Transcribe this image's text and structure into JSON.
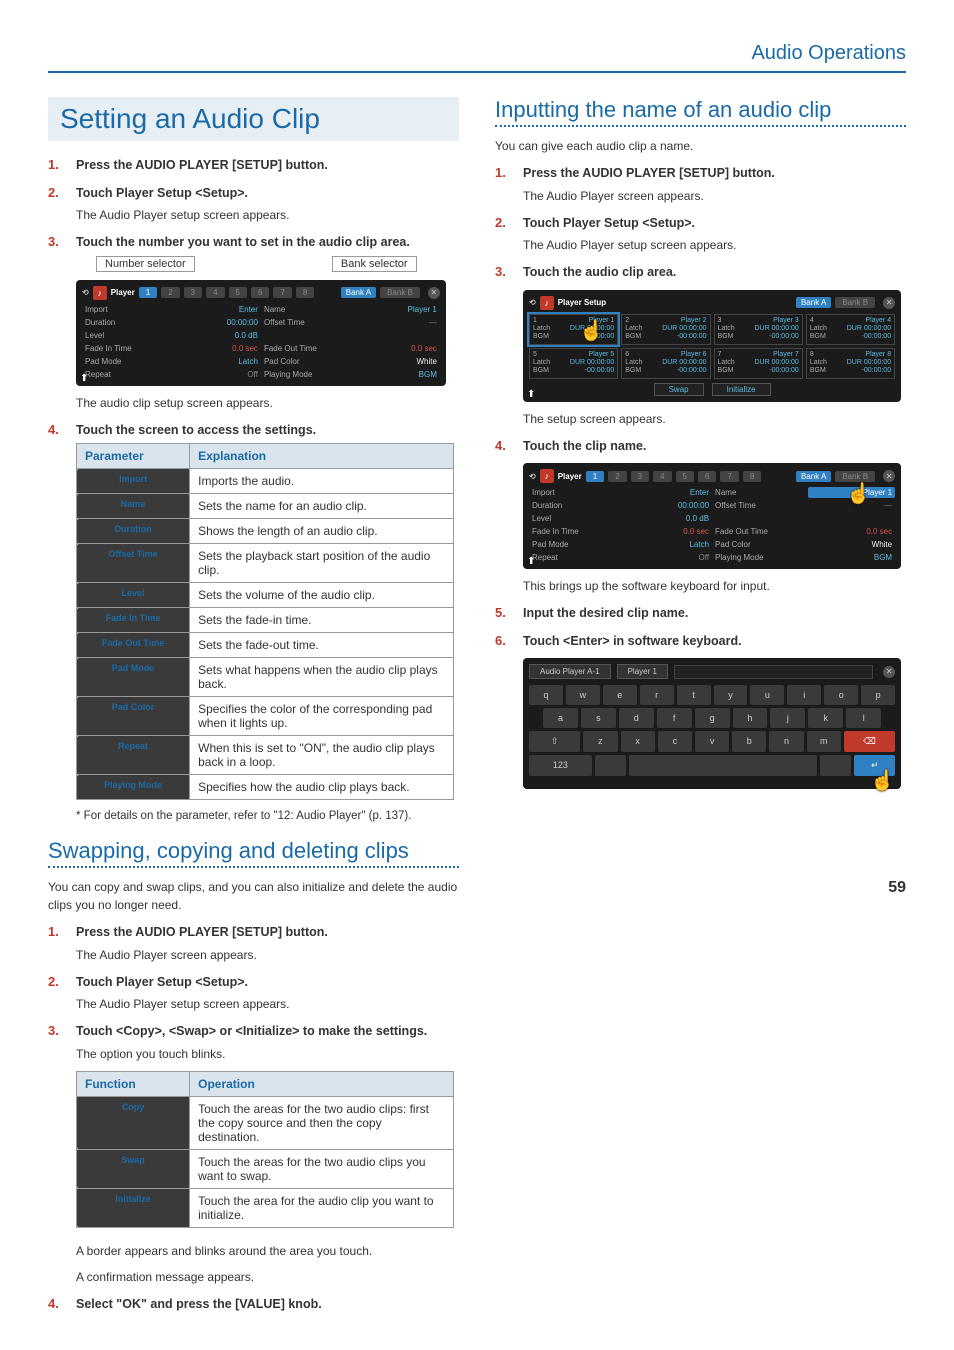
{
  "header": {
    "title": "Audio Operations"
  },
  "left": {
    "title": "Setting an Audio Clip",
    "steps": [
      {
        "n": "1.",
        "t": "Press the AUDIO PLAYER [SETUP] button."
      },
      {
        "n": "2.",
        "t": "Touch Player Setup <Setup>.",
        "s": "The Audio Player setup screen appears."
      },
      {
        "n": "3.",
        "t": "Touch the number you want to set in the audio clip area."
      }
    ],
    "callouts": {
      "num": "Number selector",
      "bank": "Bank selector"
    },
    "shot1": {
      "title": "Player",
      "tabs": [
        "1",
        "2",
        "3",
        "4",
        "5",
        "6",
        "7",
        "8"
      ],
      "bankA": "Bank A",
      "bankB": "Bank B",
      "rows": [
        [
          "Import",
          "Enter",
          "Name",
          "Player 1"
        ],
        [
          "Duration",
          "00:00:00",
          "Offset Time",
          "—"
        ],
        [
          "Level",
          "0.0 dB",
          "",
          ""
        ],
        [
          "Fade In Time",
          "0.0 sec",
          "Fade Out Time",
          "0.0 sec"
        ],
        [
          "Pad Mode",
          "Latch",
          "Pad Color",
          "White"
        ],
        [
          "Repeat",
          "Off",
          "Playing Mode",
          "BGM"
        ]
      ]
    },
    "after_shot1": "The audio clip setup screen appears.",
    "step4": {
      "n": "4.",
      "t": "Touch the screen to access the settings."
    },
    "param_table": {
      "head": [
        "Parameter",
        "Explanation"
      ],
      "rows": [
        [
          "Import",
          "Imports the audio."
        ],
        [
          "Name",
          "Sets the name for an audio clip."
        ],
        [
          "Duration",
          "Shows the length of an audio clip."
        ],
        [
          "Offset Time",
          "Sets the playback start position of the audio clip."
        ],
        [
          "Level",
          "Sets the volume of the audio clip."
        ],
        [
          "Fade In Time",
          "Sets the fade-in time."
        ],
        [
          "Fade Out Time",
          "Sets the fade-out time."
        ],
        [
          "Pad Mode",
          "Sets what happens when the audio clip plays back."
        ],
        [
          "Pad Color",
          "Specifies the color of the corresponding pad when it lights up."
        ],
        [
          "Repeat",
          "When this is set to \"ON\", the audio clip plays back in a loop."
        ],
        [
          "Playing Mode",
          "Specifies how the audio clip plays back."
        ]
      ]
    },
    "footnote": "*  For details on the parameter, refer to \"12: Audio Player\" (p. 137).",
    "sub2_title": "Swapping, copying and deleting clips",
    "sub2_intro": "You can copy and swap clips, and you can also initialize and delete the audio clips you no longer need.",
    "sub2_steps": [
      {
        "n": "1.",
        "t": "Press the AUDIO PLAYER [SETUP] button.",
        "s": "The Audio Player screen appears."
      },
      {
        "n": "2.",
        "t": "Touch Player Setup <Setup>.",
        "s": "The Audio Player setup screen appears."
      },
      {
        "n": "3.",
        "t": "Touch <Copy>, <Swap> or <Initialize> to make the settings.",
        "s": "The option you touch blinks."
      }
    ],
    "func_table": {
      "head": [
        "Function",
        "Operation"
      ],
      "rows": [
        [
          "Copy",
          "Touch the areas for the two audio clips: first the copy source and then the copy destination."
        ],
        [
          "Swap",
          "Touch the areas for the two audio clips you want to swap."
        ],
        [
          "Initialize",
          "Touch the area for the audio clip you want to initialize."
        ]
      ]
    },
    "sub2_after1": "A border appears and blinks around the area you touch.",
    "sub2_after2": "A confirmation message appears.",
    "sub2_step4": {
      "n": "4.",
      "t": "Select \"OK\" and press the [VALUE] knob."
    }
  },
  "right": {
    "title": "Inputting the name of an audio clip",
    "intro": "You can give each audio clip a name.",
    "steps": [
      {
        "n": "1.",
        "t": "Press the AUDIO PLAYER [SETUP] button.",
        "s": "The Audio Player screen appears."
      },
      {
        "n": "2.",
        "t": "Touch Player Setup <Setup>.",
        "s": "The Audio Player setup screen appears."
      },
      {
        "n": "3.",
        "t": "Touch the audio clip area."
      }
    ],
    "shot_setup": {
      "title": "Player Setup",
      "bankA": "Bank A",
      "bankB": "Bank B",
      "cells": [
        {
          "n": "1",
          "name": "Player 1",
          "l1": "Latch",
          "l2": "BGM",
          "r1": "DUR 00:00:00",
          "r2": "-00:00:00"
        },
        {
          "n": "2",
          "name": "Player 2",
          "l1": "Latch",
          "l2": "BGM",
          "r1": "DUR 00:00:00",
          "r2": "-00:00:00"
        },
        {
          "n": "3",
          "name": "Player 3",
          "l1": "Latch",
          "l2": "BGM",
          "r1": "DUR 00:00:00",
          "r2": "-00:00:00"
        },
        {
          "n": "4",
          "name": "Player 4",
          "l1": "Latch",
          "l2": "BGM",
          "r1": "DUR 00:00:00",
          "r2": "-00:00:00"
        },
        {
          "n": "5",
          "name": "Player 5",
          "l1": "Latch",
          "l2": "BGM",
          "r1": "DUR 00:00:00",
          "r2": "-00:00:00"
        },
        {
          "n": "6",
          "name": "Player 6",
          "l1": "Latch",
          "l2": "BGM",
          "r1": "DUR 00:00:00",
          "r2": "-00:00:00"
        },
        {
          "n": "7",
          "name": "Player 7",
          "l1": "Latch",
          "l2": "BGM",
          "r1": "DUR 00:00:00",
          "r2": "-00:00:00"
        },
        {
          "n": "8",
          "name": "Player 8",
          "l1": "Latch",
          "l2": "BGM",
          "r1": "DUR 00:00:00",
          "r2": "-00:00:00"
        }
      ],
      "buttons": [
        "Swap",
        "Initialize"
      ]
    },
    "after_setup": "The setup screen appears.",
    "step4": {
      "n": "4.",
      "t": "Touch the clip name."
    },
    "shot_clip": {
      "title": "Player",
      "tabs": [
        "1",
        "2",
        "3",
        "4",
        "5",
        "6",
        "7",
        "8"
      ],
      "bankA": "Bank A",
      "bankB": "Bank B",
      "rows": [
        [
          "Import",
          "Enter",
          "Name",
          "Player 1"
        ],
        [
          "Duration",
          "00:00:00",
          "Offset Time",
          "—"
        ],
        [
          "Level",
          "0.0 dB",
          "",
          ""
        ],
        [
          "Fade In Time",
          "0.0 sec",
          "Fade Out Time",
          "0.0 sec"
        ],
        [
          "Pad Mode",
          "Latch",
          "Pad Color",
          "White"
        ],
        [
          "Repeat",
          "Off",
          "Playing Mode",
          "BGM"
        ]
      ]
    },
    "after_clip": "This brings up the software keyboard for input.",
    "step5": {
      "n": "5.",
      "t": "Input the desired clip name."
    },
    "step6": {
      "n": "6.",
      "t": "Touch <Enter> in software keyboard."
    },
    "keyboard": {
      "tab1": "Audio Player A-1",
      "tab2": "Player 1",
      "row1": [
        "q",
        "w",
        "e",
        "r",
        "t",
        "y",
        "u",
        "i",
        "o",
        "p"
      ],
      "row2": [
        "a",
        "s",
        "d",
        "f",
        "g",
        "h",
        "j",
        "k",
        "l"
      ],
      "row3": [
        "⇧",
        "z",
        "x",
        "c",
        "v",
        "b",
        "n",
        "m",
        "⌫"
      ],
      "row4": [
        "123",
        "",
        "",
        "␣",
        "",
        "",
        "",
        "↵"
      ]
    }
  },
  "page_number": "59",
  "colors": {
    "brand": "#1a6aa8",
    "accent_red": "#c0392b",
    "header_bg": "#e7eff5",
    "table_head_bg": "#d9e4ec"
  }
}
